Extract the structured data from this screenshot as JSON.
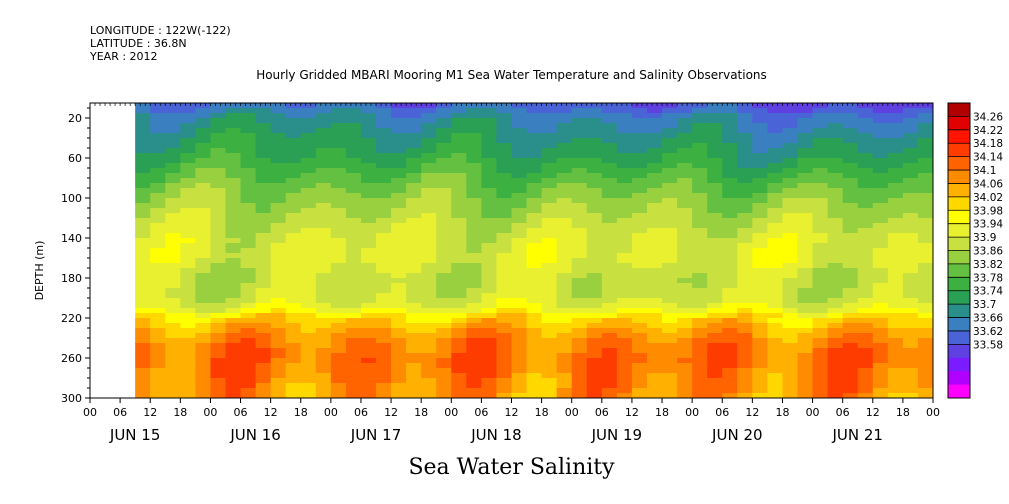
{
  "header": {
    "longitude": "LONGITUDE : 122W(-122)",
    "latitude": "LATITUDE : 36.8N",
    "year": "YEAR : 2012"
  },
  "chart_data": {
    "type": "heatmap",
    "title": "Hourly Gridded MBARI Mooring M1 Sea Water Temperature and Salinity Observations",
    "variable_label": "Sea Water Salinity",
    "ylabel": "DEPTH (m)",
    "yticks": [
      20,
      60,
      100,
      140,
      180,
      220,
      260,
      300
    ],
    "ylim": [
      300,
      5
    ],
    "x_hour_ticks": [
      "00",
      "06",
      "12",
      "18",
      "00",
      "06",
      "12",
      "18",
      "00",
      "06",
      "12",
      "18",
      "00",
      "06",
      "12",
      "18",
      "00",
      "06",
      "12",
      "18",
      "00",
      "06",
      "12",
      "18",
      "00",
      "06",
      "12",
      "18",
      "00"
    ],
    "x_day_labels": [
      "JUN 15",
      "JUN 16",
      "JUN 17",
      "JUN 18",
      "JUN 19",
      "JUN 20",
      "JUN 21"
    ],
    "x_range_hours": [
      0,
      168
    ],
    "data_start_hour": 9,
    "colorbar": {
      "levels": [
        33.58,
        33.62,
        33.66,
        33.7,
        33.74,
        33.78,
        33.82,
        33.86,
        33.9,
        33.94,
        33.98,
        34.02,
        34.06,
        34.1,
        34.14,
        34.18,
        34.22,
        34.26
      ],
      "labels": [
        "34.26",
        "34.22",
        "34.18",
        "34.14",
        "34.1",
        "34.06",
        "34.02",
        "33.98",
        "33.94",
        "33.9",
        "33.86",
        "33.82",
        "33.78",
        "33.74",
        "33.7",
        "33.66",
        "33.62",
        "33.58"
      ],
      "colors": [
        "#ff00ff",
        "#b000ff",
        "#7a1cff",
        "#5f40e0",
        "#4a64d8",
        "#3a80c0",
        "#2a8e8a",
        "#2aa055",
        "#3cb040",
        "#64c040",
        "#98d040",
        "#c8e040",
        "#e8f030",
        "#ffff00",
        "#ffd800",
        "#ffb000",
        "#ff8c00",
        "#ff6400",
        "#ff3c00",
        "#ff1400",
        "#e00000",
        "#b00000"
      ]
    },
    "profile_depths": [
      5,
      20,
      40,
      60,
      80,
      100,
      120,
      140,
      160,
      180,
      200,
      210,
      220,
      240,
      260,
      280,
      300
    ],
    "profile_salinity": [
      33.74,
      33.8,
      33.84,
      33.87,
      33.92,
      33.96,
      33.99,
      34.02,
      34.03,
      34.0,
      34.01,
      34.04,
      34.12,
      34.2,
      34.23,
      34.21,
      34.19
    ]
  }
}
